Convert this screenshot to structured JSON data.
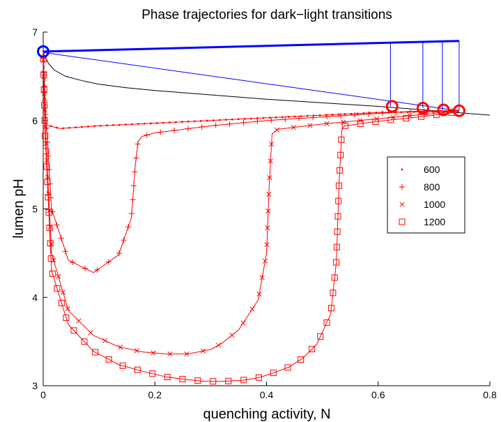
{
  "chart_data": {
    "type": "line",
    "title": "Phase trajectories for dark−light transitions",
    "xlabel": "quenching activity, N",
    "ylabel": "lumen pH",
    "xlim": [
      0,
      0.8
    ],
    "ylim": [
      3,
      7
    ],
    "xticks": [
      0,
      0.2,
      0.4,
      0.6,
      0.8
    ],
    "xtick_labels": [
      "0",
      "0.2",
      "0.4",
      "0.6",
      "0.8"
    ],
    "yticks": [
      3,
      4,
      5,
      6,
      7
    ],
    "ytick_labels": [
      "3",
      "4",
      "5",
      "6",
      "7"
    ],
    "grid": false,
    "legend_position": "right",
    "colors": {
      "series": "#ff0000",
      "dark_trajectory": "#0000ff",
      "nullcline": "#000000",
      "axes": "#000000"
    },
    "legend": [
      {
        "label": "600",
        "marker": "dot"
      },
      {
        "label": "800",
        "marker": "plus"
      },
      {
        "label": "1000",
        "marker": "x"
      },
      {
        "label": "1200",
        "marker": "square"
      }
    ],
    "series": [
      {
        "name": "600",
        "marker": "dot",
        "x": [
          0,
          0.005,
          0.03,
          0.1,
          0.2,
          0.3,
          0.4,
          0.5,
          0.6,
          0.7,
          0.745
        ],
        "y": [
          6.78,
          5.95,
          5.91,
          5.94,
          5.97,
          6.0,
          6.03,
          6.06,
          6.09,
          6.1,
          6.11
        ]
      },
      {
        "name": "800",
        "marker": "plus",
        "x": [
          0,
          0.003,
          0.015,
          0.045,
          0.09,
          0.135,
          0.158,
          0.165,
          0.17,
          0.177,
          0.2,
          0.3,
          0.4,
          0.5,
          0.6,
          0.65,
          0.7,
          0.745
        ],
        "y": [
          6.78,
          6.2,
          5.0,
          4.42,
          4.28,
          4.48,
          4.9,
          5.5,
          5.76,
          5.82,
          5.86,
          5.94,
          6.0,
          6.04,
          6.08,
          6.1,
          6.11,
          6.11
        ]
      },
      {
        "name": "1000",
        "marker": "x",
        "x": [
          0,
          0.003,
          0.015,
          0.045,
          0.09,
          0.135,
          0.18,
          0.22,
          0.26,
          0.3,
          0.32,
          0.35,
          0.385,
          0.4,
          0.405,
          0.41,
          0.42,
          0.5,
          0.6,
          0.7,
          0.745
        ],
        "y": [
          6.78,
          6.0,
          4.5,
          3.85,
          3.57,
          3.44,
          3.38,
          3.36,
          3.36,
          3.41,
          3.48,
          3.63,
          3.97,
          4.5,
          5.3,
          5.85,
          5.9,
          5.96,
          6.02,
          6.08,
          6.11
        ]
      },
      {
        "name": "1200",
        "marker": "square",
        "x": [
          0,
          0.003,
          0.015,
          0.045,
          0.09,
          0.135,
          0.18,
          0.22,
          0.255,
          0.29,
          0.32,
          0.355,
          0.385,
          0.41,
          0.44,
          0.465,
          0.49,
          0.515,
          0.525,
          0.53,
          0.535,
          0.54,
          0.6,
          0.7,
          0.745
        ],
        "y": [
          6.78,
          5.9,
          4.3,
          3.69,
          3.39,
          3.24,
          3.16,
          3.1,
          3.07,
          3.05,
          3.05,
          3.06,
          3.09,
          3.14,
          3.21,
          3.31,
          3.47,
          3.81,
          4.4,
          5.3,
          5.9,
          5.94,
          5.99,
          6.06,
          6.1
        ]
      }
    ],
    "dark_trajectory": {
      "upper": {
        "x": [
          0,
          0.745
        ],
        "y": [
          6.78,
          6.9
        ]
      },
      "lower": {
        "x": [
          0,
          0.745
        ],
        "y": [
          6.77,
          6.11
        ]
      },
      "drops": [
        {
          "x": 0.622,
          "y_top": 6.885,
          "y_bottom": 6.16
        },
        {
          "x": 0.68,
          "y_top": 6.893,
          "y_bottom": 6.14
        },
        {
          "x": 0.715,
          "y_top": 6.897,
          "y_bottom": 6.12
        },
        {
          "x": 0.745,
          "y_top": 6.9,
          "y_bottom": 6.11
        }
      ]
    },
    "nullcline": {
      "x": [
        0.0,
        0.002,
        0.005,
        0.01,
        0.02,
        0.04,
        0.07,
        0.1,
        0.15,
        0.2,
        0.3,
        0.4,
        0.5,
        0.6,
        0.7,
        0.8
      ],
      "y": [
        6.78,
        6.74,
        6.7,
        6.64,
        6.57,
        6.5,
        6.45,
        6.41,
        6.37,
        6.34,
        6.29,
        6.24,
        6.2,
        6.16,
        6.11,
        6.06
      ]
    },
    "endpoints": [
      {
        "x": 0.625,
        "y": 6.16,
        "color": "#ff0000"
      },
      {
        "x": 0.68,
        "y": 6.14,
        "color": "#ff0000"
      },
      {
        "x": 0.717,
        "y": 6.12,
        "color": "#ff0000"
      },
      {
        "x": 0.745,
        "y": 6.11,
        "color": "#ff0000"
      },
      {
        "x": 0,
        "y": 6.78,
        "color": "#0000ff"
      }
    ]
  }
}
